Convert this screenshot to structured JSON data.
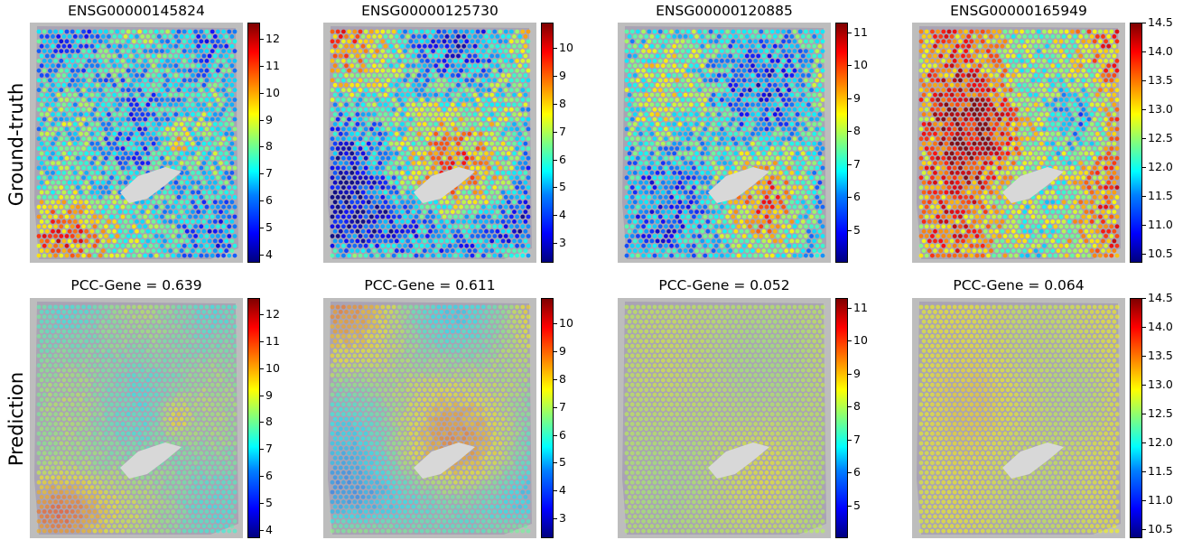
{
  "row_labels": [
    "Ground-truth",
    "Prediction"
  ],
  "colormap": [
    "#00007f",
    "#0000ff",
    "#007fff",
    "#00ffff",
    "#7fff7f",
    "#ffff00",
    "#ff7f00",
    "#ff0000",
    "#7f0000"
  ],
  "chart_data": [
    {
      "type": "heatmap",
      "row": "Ground-truth",
      "title": "ENSG00000145824",
      "colorbar": {
        "min": 3.7,
        "max": 12.6,
        "ticks": [
          4,
          5,
          6,
          7,
          8,
          9,
          10,
          11,
          12
        ]
      }
    },
    {
      "type": "heatmap",
      "row": "Ground-truth",
      "title": "ENSG00000125730",
      "colorbar": {
        "min": 2.3,
        "max": 10.9,
        "ticks": [
          3,
          4,
          5,
          6,
          7,
          8,
          9,
          10
        ]
      }
    },
    {
      "type": "heatmap",
      "row": "Ground-truth",
      "title": "ENSG00000120885",
      "colorbar": {
        "min": 4.0,
        "max": 11.3,
        "ticks": [
          5,
          6,
          7,
          8,
          9,
          10,
          11
        ]
      }
    },
    {
      "type": "heatmap",
      "row": "Ground-truth",
      "title": "ENSG00000165949",
      "colorbar": {
        "min": 10.35,
        "max": 14.5,
        "ticks": [
          "10.5",
          "11.0",
          "11.5",
          "12.0",
          "12.5",
          "13.0",
          "13.5",
          "14.0",
          "14.5"
        ]
      }
    },
    {
      "type": "heatmap",
      "row": "Prediction",
      "title": "PCC-Gene  = 0.639",
      "pcc": 0.639,
      "colorbar": {
        "min": 3.7,
        "max": 12.6,
        "ticks": [
          4,
          5,
          6,
          7,
          8,
          9,
          10,
          11,
          12
        ]
      }
    },
    {
      "type": "heatmap",
      "row": "Prediction",
      "title": "PCC-Gene  = 0.611",
      "pcc": 0.611,
      "colorbar": {
        "min": 2.3,
        "max": 10.9,
        "ticks": [
          3,
          4,
          5,
          6,
          7,
          8,
          9,
          10
        ]
      }
    },
    {
      "type": "heatmap",
      "row": "Prediction",
      "title": "PCC-Gene  = 0.052",
      "pcc": 0.052,
      "colorbar": {
        "min": 4.0,
        "max": 11.3,
        "ticks": [
          5,
          6,
          7,
          8,
          9,
          10,
          11
        ]
      }
    },
    {
      "type": "heatmap",
      "row": "Prediction",
      "title": "PCC-Gene  = 0.064",
      "pcc": 0.064,
      "colorbar": {
        "min": 10.35,
        "max": 14.5,
        "ticks": [
          "10.5",
          "11.0",
          "11.5",
          "12.0",
          "12.5",
          "13.0",
          "13.5",
          "14.0",
          "14.5"
        ]
      }
    }
  ]
}
